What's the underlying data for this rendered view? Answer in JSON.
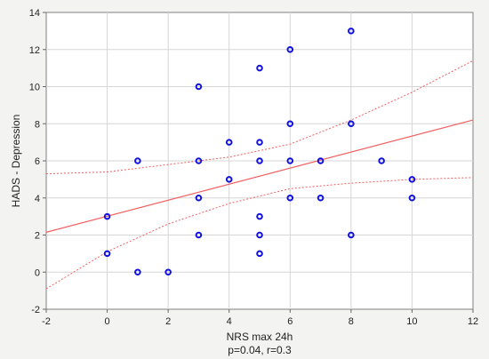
{
  "chart_data": {
    "type": "scatter",
    "xlabel": "NRS max 24h",
    "ylabel": "HADS - Depression",
    "caption": "p=0.04, r=0.3",
    "xlim": [
      -2,
      12
    ],
    "ylim": [
      -2,
      14
    ],
    "xticks": [
      -2,
      0,
      2,
      4,
      6,
      8,
      10,
      12
    ],
    "yticks": [
      -2,
      0,
      2,
      4,
      6,
      8,
      10,
      12,
      14
    ],
    "grid": true,
    "point_color": "#1010e0",
    "fit_color": "#f06060",
    "points": [
      {
        "x": 0,
        "y": 3
      },
      {
        "x": 0,
        "y": 1
      },
      {
        "x": 1,
        "y": 6
      },
      {
        "x": 1,
        "y": 0
      },
      {
        "x": 2,
        "y": 0
      },
      {
        "x": 3,
        "y": 10
      },
      {
        "x": 3,
        "y": 6
      },
      {
        "x": 3,
        "y": 4
      },
      {
        "x": 3,
        "y": 2
      },
      {
        "x": 4,
        "y": 7
      },
      {
        "x": 4,
        "y": 5
      },
      {
        "x": 5,
        "y": 11
      },
      {
        "x": 5,
        "y": 7
      },
      {
        "x": 5,
        "y": 6
      },
      {
        "x": 5,
        "y": 3
      },
      {
        "x": 5,
        "y": 2
      },
      {
        "x": 5,
        "y": 1
      },
      {
        "x": 6,
        "y": 12
      },
      {
        "x": 6,
        "y": 8
      },
      {
        "x": 6,
        "y": 6
      },
      {
        "x": 6,
        "y": 4
      },
      {
        "x": 7,
        "y": 6
      },
      {
        "x": 7,
        "y": 4
      },
      {
        "x": 8,
        "y": 13
      },
      {
        "x": 8,
        "y": 8
      },
      {
        "x": 8,
        "y": 2
      },
      {
        "x": 9,
        "y": 6
      },
      {
        "x": 10,
        "y": 5
      },
      {
        "x": 10,
        "y": 4
      }
    ],
    "fit_line": [
      [
        -2,
        2.15
      ],
      [
        12,
        8.2
      ]
    ],
    "confidence_upper": [
      [
        -2,
        5.3
      ],
      [
        0,
        5.4
      ],
      [
        2,
        5.8
      ],
      [
        4,
        6.2
      ],
      [
        6,
        6.9
      ],
      [
        8,
        8.2
      ],
      [
        10,
        9.7
      ],
      [
        12,
        11.4
      ]
    ],
    "confidence_lower": [
      [
        -2,
        -0.9
      ],
      [
        0,
        1.1
      ],
      [
        2,
        2.6
      ],
      [
        4,
        3.7
      ],
      [
        6,
        4.5
      ],
      [
        8,
        4.8
      ],
      [
        10,
        5.0
      ],
      [
        12,
        5.1
      ]
    ]
  }
}
